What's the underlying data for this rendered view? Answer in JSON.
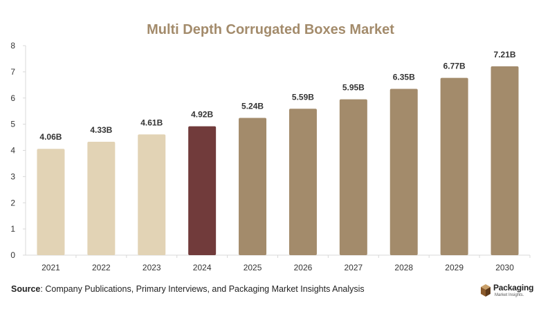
{
  "title": "Multi Depth Corrugated Boxes Market",
  "source": {
    "prefix": "Source",
    "text": ": Company Publications, Primary Interviews, and Packaging Market Insights Analysis"
  },
  "logo": {
    "name": "Packaging",
    "tagline": "Market Insights.",
    "icon": "box-icon"
  },
  "colors": {
    "historical": "#e2d3b5",
    "current": "#713b3b",
    "forecast": "#a38b6b",
    "title": "#a38b6b"
  },
  "chart_data": {
    "type": "bar",
    "title": "Multi Depth Corrugated Boxes Market",
    "xlabel": "",
    "ylabel": "",
    "ylim": [
      0,
      8
    ],
    "yticks": [
      0,
      1,
      2,
      3,
      4,
      5,
      6,
      7,
      8
    ],
    "grid": false,
    "categories": [
      "2021",
      "2022",
      "2023",
      "2024",
      "2025",
      "2026",
      "2027",
      "2028",
      "2029",
      "2030"
    ],
    "values": [
      4.06,
      4.33,
      4.61,
      4.92,
      5.24,
      5.59,
      5.95,
      6.35,
      6.77,
      7.21
    ],
    "labels": [
      "4.06B",
      "4.33B",
      "4.61B",
      "4.92B",
      "5.24B",
      "5.59B",
      "5.95B",
      "6.35B",
      "6.77B",
      "7.21B"
    ],
    "bar_colors": [
      "#e2d3b5",
      "#e2d3b5",
      "#e2d3b5",
      "#713b3b",
      "#a38b6b",
      "#a38b6b",
      "#a38b6b",
      "#a38b6b",
      "#a38b6b",
      "#a38b6b"
    ]
  }
}
